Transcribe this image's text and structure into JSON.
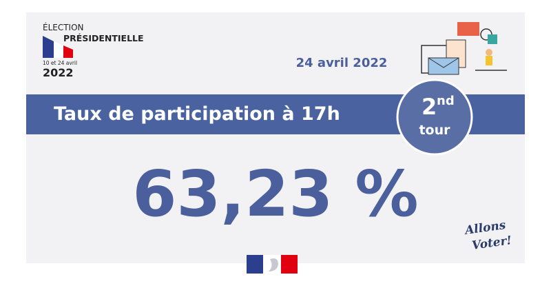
{
  "logo": {
    "line1": "ÉLECTION",
    "line2": "PRÉSIDENTIELLE",
    "dates": "10 et 24 avril",
    "year": "2022"
  },
  "date": "24 avril 2022",
  "banner": {
    "title": "Taux de participation à 17h"
  },
  "badge": {
    "round": "2",
    "suffix": "nd",
    "label": "tour"
  },
  "result": "63,23 %",
  "slogan": {
    "line1": "Allons",
    "line2": "Voter!"
  }
}
